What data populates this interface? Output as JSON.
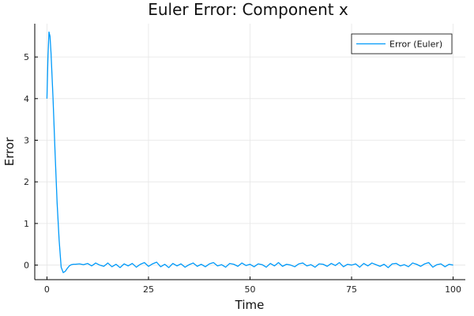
{
  "chart_data": {
    "type": "line",
    "title": "Euler Error: Component x",
    "xlabel": "Time",
    "ylabel": "Error",
    "xlim": [
      -3,
      103
    ],
    "ylim": [
      -0.35,
      5.8
    ],
    "xticks": [
      0,
      25,
      50,
      75,
      100
    ],
    "yticks": [
      0,
      1,
      2,
      3,
      4,
      5
    ],
    "grid": true,
    "legend_position": "top-right",
    "series": [
      {
        "name": "Error (Euler)",
        "color": "#009AFA",
        "x": [
          0,
          0.25,
          0.5,
          0.75,
          1,
          1.5,
          2,
          2.5,
          3,
          3.5,
          4,
          4.5,
          5,
          5.5,
          6,
          6.5,
          7,
          8,
          9,
          10,
          11,
          12,
          13,
          14,
          15,
          16,
          17,
          18,
          19,
          20,
          21,
          22,
          23,
          24,
          25,
          26,
          27,
          28,
          29,
          30,
          31,
          32,
          33,
          34,
          35,
          36,
          37,
          38,
          39,
          40,
          41,
          42,
          43,
          44,
          45,
          46,
          47,
          48,
          49,
          50,
          51,
          52,
          53,
          54,
          55,
          56,
          57,
          58,
          59,
          60,
          61,
          62,
          63,
          64,
          65,
          66,
          67,
          68,
          69,
          70,
          71,
          72,
          73,
          74,
          75,
          76,
          77,
          78,
          79,
          80,
          81,
          82,
          83,
          84,
          85,
          86,
          87,
          88,
          89,
          90,
          91,
          92,
          93,
          94,
          95,
          96,
          97,
          98,
          99,
          100
        ],
        "y": [
          4.0,
          5.0,
          5.6,
          5.5,
          5.1,
          4.0,
          2.7,
          1.5,
          0.6,
          -0.05,
          -0.18,
          -0.15,
          -0.08,
          -0.02,
          0.01,
          0.02,
          0.02,
          0.03,
          0.01,
          0.04,
          -0.02,
          0.05,
          0.0,
          -0.03,
          0.05,
          -0.04,
          0.02,
          -0.06,
          0.03,
          -0.02,
          0.04,
          -0.05,
          0.02,
          0.06,
          -0.03,
          0.03,
          0.07,
          -0.04,
          0.02,
          -0.06,
          0.04,
          -0.02,
          0.03,
          -0.05,
          0.01,
          0.05,
          -0.03,
          0.02,
          -0.04,
          0.03,
          0.06,
          -0.02,
          0.01,
          -0.05,
          0.04,
          0.02,
          -0.03,
          0.05,
          -0.01,
          0.02,
          -0.04,
          0.03,
          0.01,
          -0.05,
          0.04,
          -0.02,
          0.06,
          -0.03,
          0.02,
          0.0,
          -0.04,
          0.03,
          0.05,
          -0.02,
          0.01,
          -0.05,
          0.03,
          0.02,
          -0.03,
          0.04,
          -0.01,
          0.06,
          -0.04,
          0.02,
          0.0,
          0.03,
          -0.05,
          0.04,
          -0.02,
          0.05,
          0.01,
          -0.03,
          0.02,
          -0.06,
          0.03,
          0.04,
          -0.02,
          0.01,
          -0.04,
          0.05,
          0.02,
          -0.03,
          0.03,
          0.06,
          -0.05,
          0.01,
          0.03,
          -0.04,
          0.02,
          0.0
        ]
      }
    ]
  }
}
